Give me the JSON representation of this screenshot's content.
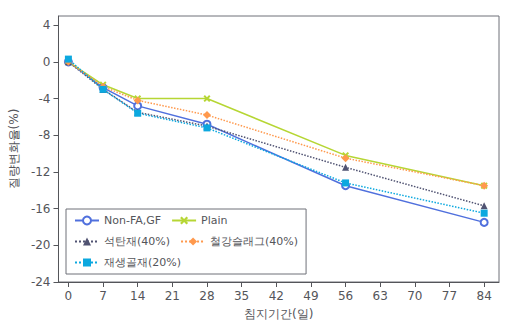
{
  "chart_data": {
    "type": "line",
    "x": [
      0,
      7,
      14,
      28,
      56,
      84
    ],
    "series": [
      {
        "name": "Non-FA,GF",
        "values": [
          0,
          -2.8,
          -4.8,
          -6.8,
          -13.5,
          -17.5
        ],
        "marker": "open_circle",
        "line_style": "solid"
      },
      {
        "name": "Plain",
        "values": [
          0,
          -2.5,
          -4.0,
          -4.0,
          -10.2,
          -13.5
        ],
        "marker": "x",
        "line_style": "solid"
      },
      {
        "name": "석탄재(40%)",
        "values": [
          0,
          -3.0,
          -5.5,
          -7.0,
          -11.5,
          -15.7
        ],
        "marker": "triangle",
        "line_style": "dotted"
      },
      {
        "name": "철강슬래그(40%)",
        "values": [
          0,
          -2.7,
          -4.2,
          -5.8,
          -10.5,
          -13.5
        ],
        "marker": "diamond",
        "line_style": "dotted"
      },
      {
        "name": "재생골재(20%)",
        "values": [
          0.3,
          -3.0,
          -5.6,
          -7.2,
          -13.2,
          -16.5
        ],
        "marker": "square",
        "line_style": "dotted"
      }
    ],
    "xlim": [
      -2,
      87
    ],
    "xticks": [
      0,
      7,
      14,
      21,
      28,
      35,
      42,
      49,
      56,
      63,
      70,
      77,
      84
    ],
    "ylim": [
      -24,
      5
    ],
    "yticks": [
      4,
      0,
      -4,
      -8,
      -12,
      -16,
      -20,
      -24
    ],
    "xlabel": "침지기간(일)",
    "ylabel": "질량변화율(%)",
    "grid": false,
    "legend": "lower left"
  }
}
